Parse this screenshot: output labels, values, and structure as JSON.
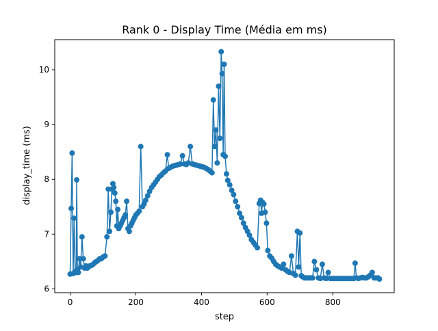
{
  "chart_data": {
    "type": "line",
    "title": "Rank 0 - Display Time (Média em ms)",
    "xlabel": "step",
    "ylabel": "display_time (ms)",
    "xlim": [
      -47,
      987
    ],
    "ylim": [
      5.93,
      10.55
    ],
    "xticks": [
      0,
      200,
      400,
      600,
      800
    ],
    "yticks": [
      6,
      7,
      8,
      9,
      10
    ],
    "grid": false,
    "legend": "none",
    "series": [
      {
        "color": "#1f77b4",
        "marker": "circle",
        "x": [
          0,
          3,
          6,
          9,
          12,
          15,
          18,
          20,
          22,
          25,
          28,
          32,
          36,
          40,
          44,
          48,
          52,
          56,
          60,
          65,
          70,
          75,
          80,
          85,
          90,
          95,
          100,
          106,
          112,
          116,
          120,
          124,
          127,
          130,
          133,
          136,
          139,
          142,
          145,
          148,
          152,
          156,
          160,
          164,
          168,
          172,
          176,
          180,
          184,
          188,
          192,
          196,
          200,
          205,
          210,
          215,
          220,
          225,
          230,
          236,
          242,
          248,
          254,
          260,
          266,
          272,
          278,
          284,
          290,
          296,
          300,
          306,
          312,
          318,
          324,
          330,
          336,
          342,
          348,
          354,
          360,
          366,
          372,
          378,
          384,
          390,
          396,
          402,
          408,
          414,
          420,
          426,
          432,
          436,
          440,
          444,
          448,
          452,
          456,
          460,
          463,
          466,
          469,
          472,
          476,
          480,
          486,
          492,
          498,
          504,
          510,
          516,
          522,
          528,
          534,
          540,
          546,
          552,
          558,
          564,
          570,
          576,
          580,
          583,
          586,
          590,
          594,
          598,
          602,
          608,
          614,
          620,
          626,
          632,
          638,
          644,
          650,
          656,
          662,
          668,
          674,
          680,
          686,
          692,
          696,
          700,
          704,
          708,
          714,
          720,
          726,
          732,
          738,
          744,
          750,
          756,
          762,
          768,
          774,
          780,
          786,
          792,
          798,
          804,
          810,
          816,
          822,
          828,
          834,
          840,
          846,
          852,
          858,
          864,
          868,
          872,
          878,
          884,
          890,
          896,
          902,
          908,
          914,
          920,
          926,
          932,
          938,
          942
        ],
        "y": [
          6.27,
          7.47,
          8.48,
          6.28,
          7.29,
          6.32,
          6.3,
          7.99,
          6.35,
          6.3,
          6.55,
          6.4,
          6.95,
          6.55,
          6.38,
          6.42,
          6.38,
          6.4,
          6.42,
          6.43,
          6.45,
          6.48,
          6.5,
          6.52,
          6.55,
          6.55,
          6.58,
          6.6,
          6.95,
          7.82,
          7.05,
          7.4,
          7.82,
          7.92,
          7.85,
          7.75,
          7.6,
          7.15,
          7.45,
          7.1,
          7.15,
          7.2,
          7.25,
          7.3,
          7.35,
          7.6,
          7.1,
          7.05,
          7.15,
          7.2,
          7.25,
          7.3,
          7.35,
          7.38,
          7.42,
          8.6,
          7.5,
          7.55,
          7.62,
          7.7,
          7.78,
          7.85,
          7.9,
          7.95,
          8.0,
          8.05,
          8.08,
          8.12,
          8.15,
          8.45,
          8.2,
          8.22,
          8.24,
          8.25,
          8.26,
          8.27,
          8.28,
          8.43,
          8.28,
          8.27,
          8.3,
          8.6,
          8.28,
          8.27,
          8.26,
          8.25,
          8.24,
          8.23,
          8.22,
          8.2,
          8.18,
          8.15,
          8.12,
          9.45,
          8.6,
          8.9,
          8.3,
          9.7,
          8.75,
          10.33,
          9.93,
          8.45,
          10.1,
          8.42,
          8.1,
          7.98,
          7.9,
          7.8,
          7.72,
          7.6,
          7.5,
          7.38,
          7.3,
          7.2,
          7.12,
          7.05,
          6.98,
          6.9,
          6.85,
          6.8,
          6.75,
          7.56,
          7.62,
          7.38,
          7.58,
          7.55,
          7.4,
          7.2,
          6.7,
          6.6,
          6.56,
          6.5,
          6.45,
          6.42,
          6.4,
          6.38,
          6.45,
          6.35,
          6.32,
          6.3,
          6.6,
          6.28,
          6.25,
          7.05,
          6.4,
          7.02,
          6.24,
          6.22,
          6.2,
          6.2,
          6.2,
          6.2,
          6.2,
          6.5,
          6.35,
          6.2,
          6.19,
          6.45,
          6.2,
          6.19,
          6.3,
          6.19,
          6.19,
          6.19,
          6.19,
          6.19,
          6.19,
          6.19,
          6.19,
          6.19,
          6.19,
          6.19,
          6.19,
          6.19,
          6.47,
          6.2,
          6.19,
          6.2,
          6.21,
          6.2,
          6.2,
          6.22,
          6.25,
          6.3,
          6.2,
          6.2,
          6.2,
          6.18
        ]
      }
    ]
  }
}
